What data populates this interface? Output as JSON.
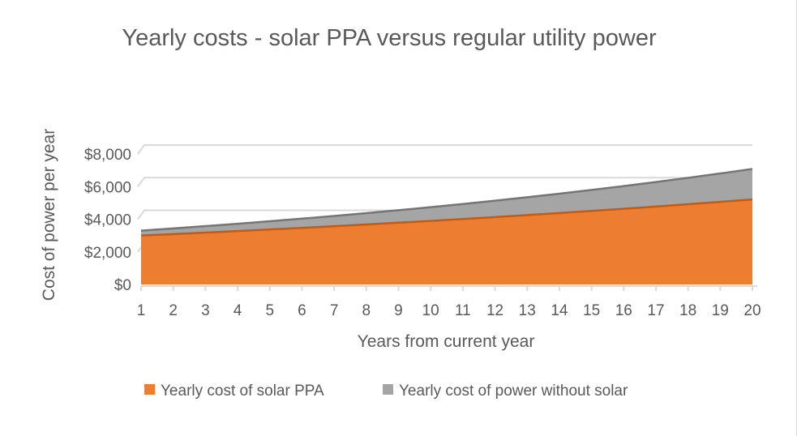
{
  "chart_data": {
    "type": "area",
    "title": "Yearly costs - solar PPA versus regular utility power",
    "xlabel": "Years from current year",
    "ylabel": "Cost of power per year",
    "x": [
      1,
      2,
      3,
      4,
      5,
      6,
      7,
      8,
      9,
      10,
      11,
      12,
      13,
      14,
      15,
      16,
      17,
      18,
      19,
      20
    ],
    "ylim": [
      0,
      8000
    ],
    "yticks": [
      0,
      2000,
      4000,
      6000,
      8000
    ],
    "ytick_labels": [
      "$0",
      "$2,000",
      "$4,000",
      "$6,000",
      "$8,000"
    ],
    "grid": true,
    "legend_position": "bottom",
    "series": [
      {
        "name": "Yearly cost of power without solar",
        "color": "#a5a5a5",
        "values": [
          3300,
          3435,
          3576,
          3723,
          3876,
          4035,
          4200,
          4373,
          4552,
          4739,
          4933,
          5136,
          5346,
          5566,
          5794,
          6032,
          6279,
          6537,
          6805,
          7084
        ]
      },
      {
        "name": "Yearly cost of solar PPA",
        "color": "#ed7d31",
        "values": [
          3000,
          3089,
          3180,
          3273,
          3370,
          3469,
          3572,
          3677,
          3786,
          3897,
          4012,
          4131,
          4253,
          4378,
          4507,
          4640,
          4777,
          4918,
          5063,
          5213
        ]
      }
    ]
  }
}
